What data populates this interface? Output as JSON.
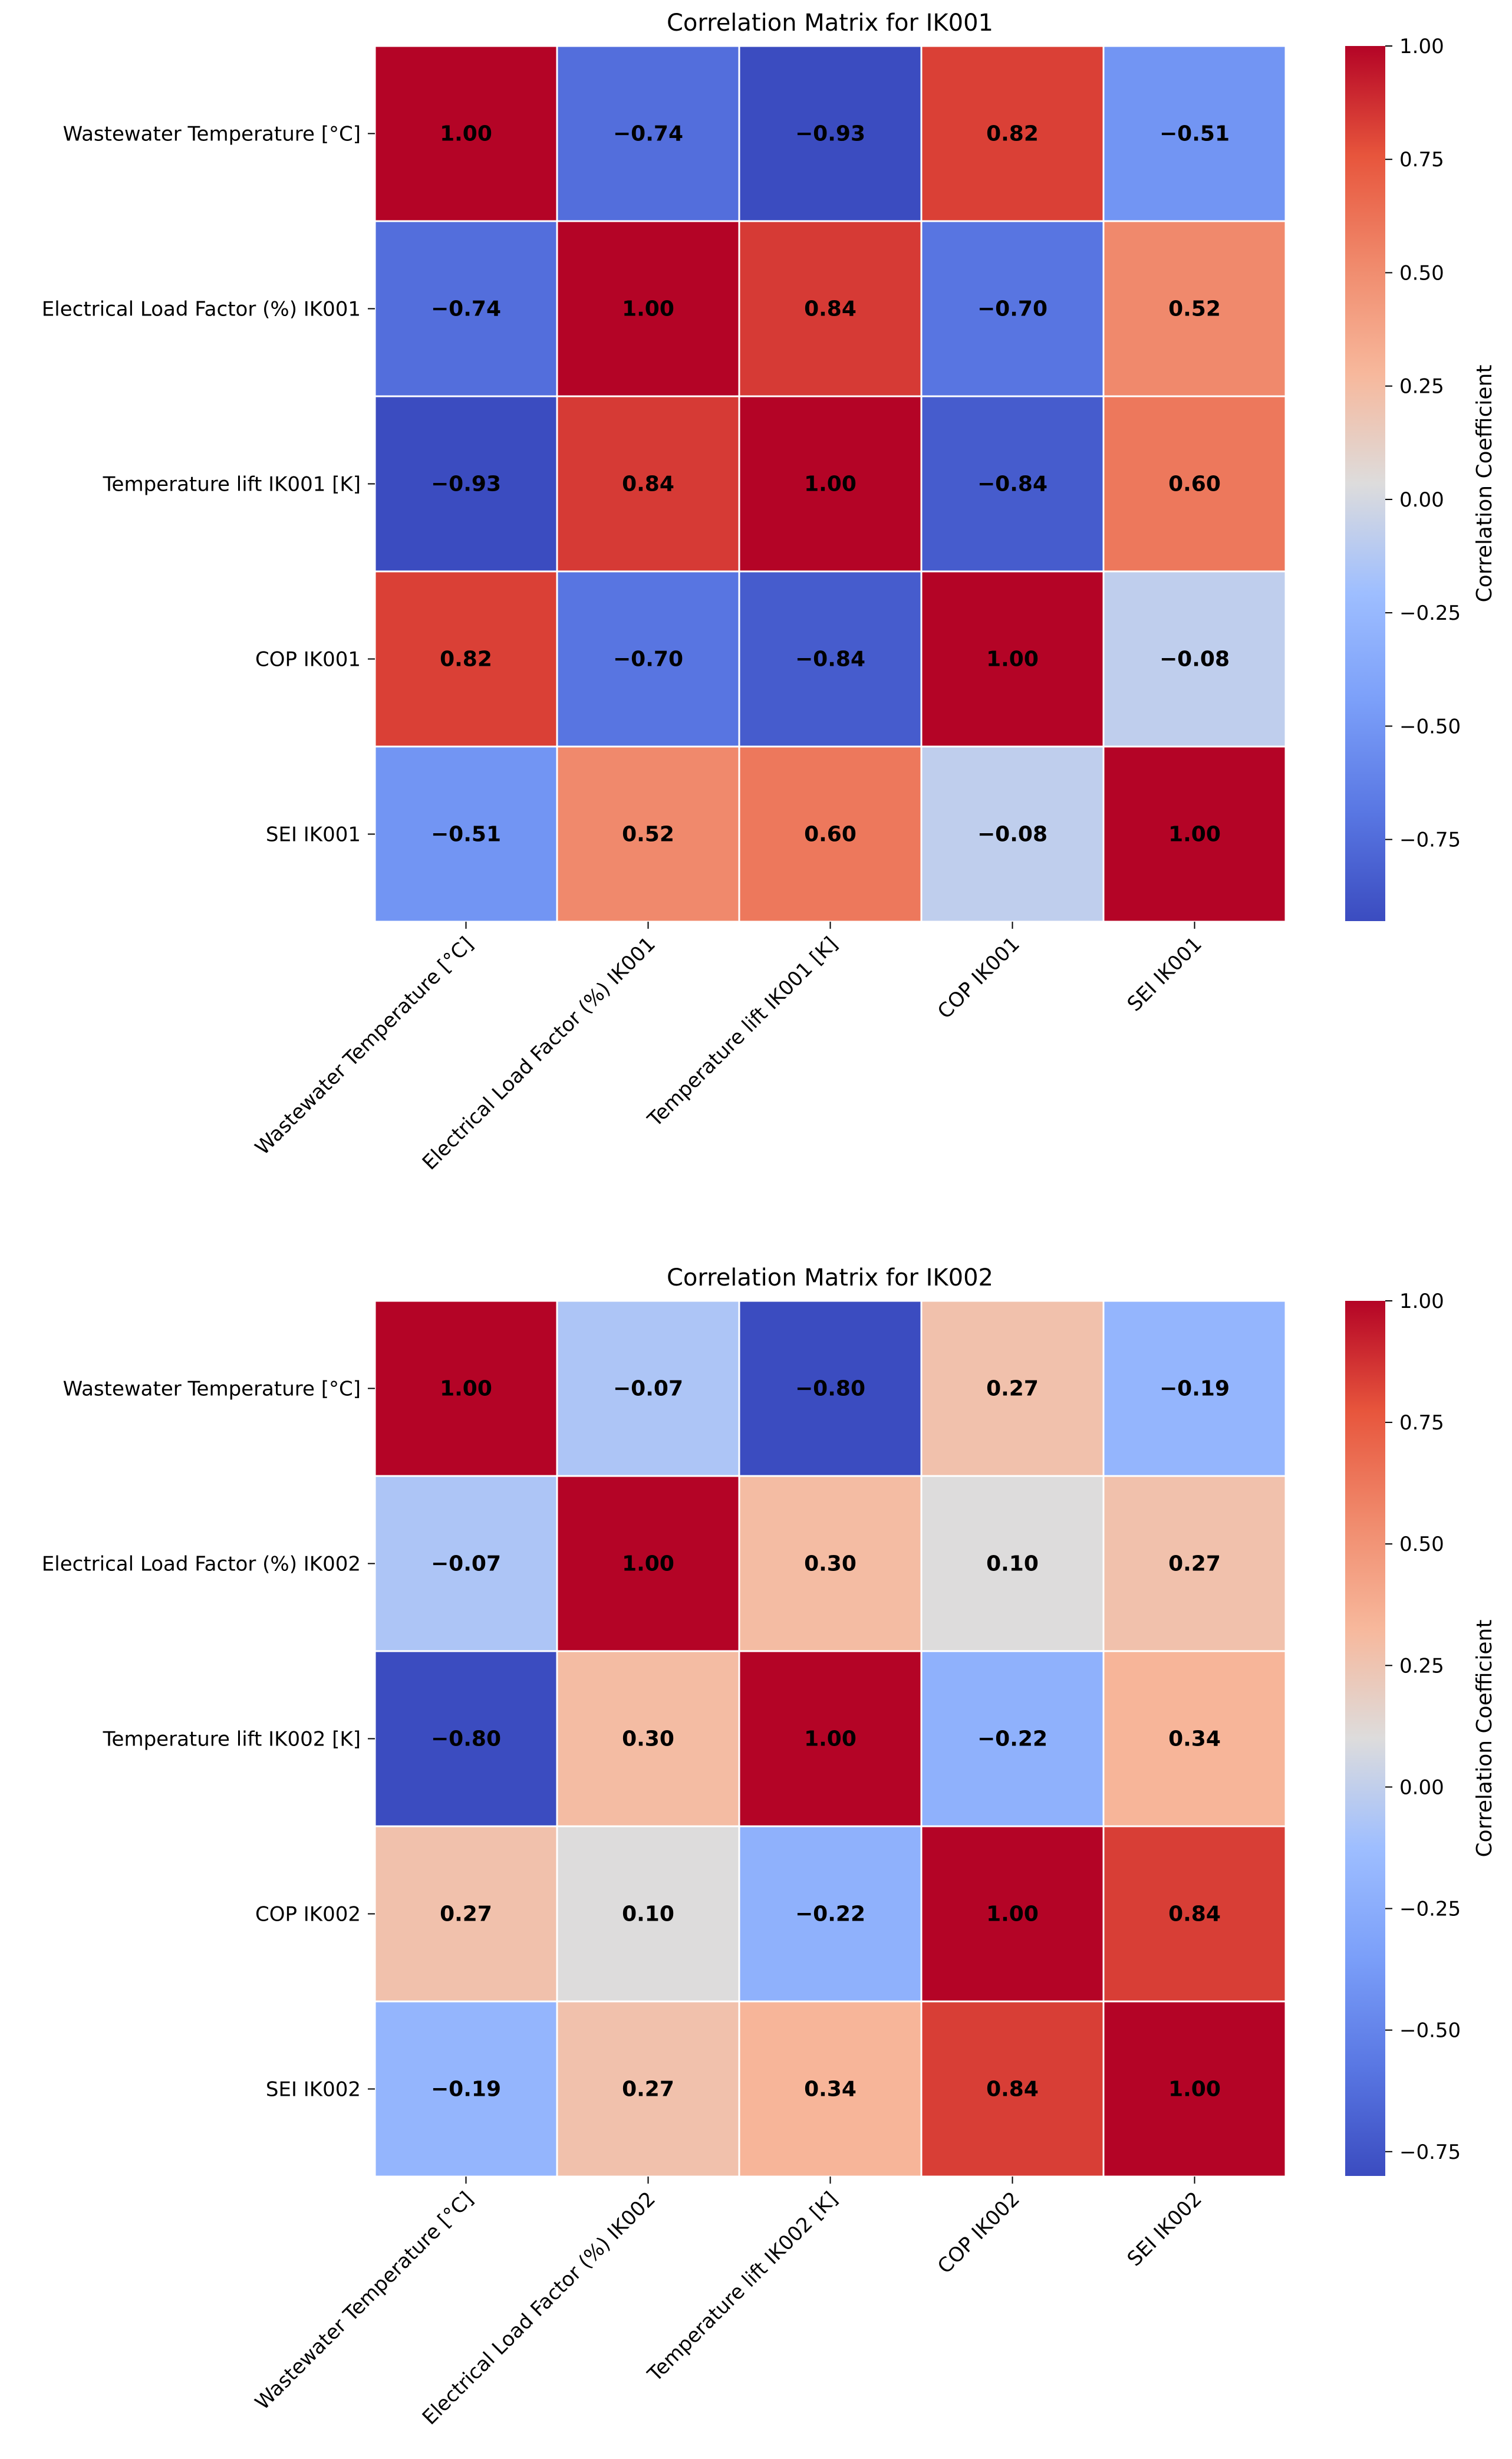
{
  "chart_data": [
    {
      "type": "heatmap",
      "title": "Correlation Matrix for IK001",
      "row_labels": [
        "Wastewater Temperature [°C]",
        "Electrical Load Factor (%) IK001",
        "Temperature lift IK001 [K]",
        "COP IK001",
        "SEI IK001"
      ],
      "col_labels": [
        "Wastewater Temperature [°C]",
        "Electrical Load Factor (%) IK001",
        "Temperature lift IK001 [K]",
        "COP IK001",
        "SEI IK001"
      ],
      "values": [
        [
          1.0,
          -0.74,
          -0.93,
          0.82,
          -0.51
        ],
        [
          -0.74,
          1.0,
          0.84,
          -0.7,
          0.52
        ],
        [
          -0.93,
          0.84,
          1.0,
          -0.84,
          0.6
        ],
        [
          0.82,
          -0.7,
          -0.84,
          1.0,
          -0.08
        ],
        [
          -0.51,
          0.52,
          0.6,
          -0.08,
          1.0
        ]
      ],
      "colorbar": {
        "label": "Correlation Coefficient",
        "range": [
          -0.93,
          1.0
        ],
        "ticks": [
          1.0,
          0.75,
          0.5,
          0.25,
          0.0,
          -0.25,
          -0.5,
          -0.75
        ],
        "tick_labels": [
          "1.00",
          "0.75",
          "0.50",
          "0.25",
          "0.00",
          "−0.25",
          "−0.50",
          "−0.75"
        ]
      }
    },
    {
      "type": "heatmap",
      "title": "Correlation Matrix for IK002",
      "row_labels": [
        "Wastewater Temperature [°C]",
        "Electrical Load Factor (%) IK002",
        "Temperature lift IK002 [K]",
        "COP IK002",
        "SEI IK002"
      ],
      "col_labels": [
        "Wastewater Temperature [°C]",
        "Electrical Load Factor (%) IK002",
        "Temperature lift IK002 [K]",
        "COP IK002",
        "SEI IK002"
      ],
      "values": [
        [
          1.0,
          -0.07,
          -0.8,
          0.27,
          -0.19
        ],
        [
          -0.07,
          1.0,
          0.3,
          0.1,
          0.27
        ],
        [
          -0.8,
          0.3,
          1.0,
          -0.22,
          0.34
        ],
        [
          0.27,
          0.1,
          -0.22,
          1.0,
          0.84
        ],
        [
          -0.19,
          0.27,
          0.34,
          0.84,
          1.0
        ]
      ],
      "colorbar": {
        "label": "Correlation Coefficient",
        "range": [
          -0.8,
          1.0
        ],
        "ticks": [
          1.0,
          0.75,
          0.5,
          0.25,
          0.0,
          -0.25,
          -0.5,
          -0.75
        ],
        "tick_labels": [
          "1.00",
          "0.75",
          "0.50",
          "0.25",
          "0.00",
          "−0.25",
          "−0.50",
          "−0.75"
        ]
      }
    }
  ]
}
